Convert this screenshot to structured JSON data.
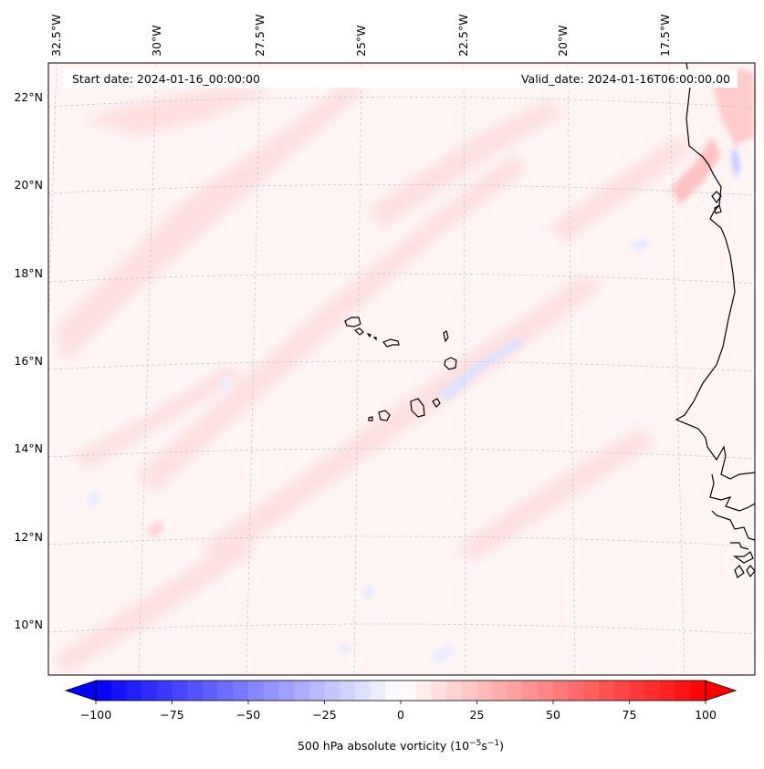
{
  "map": {
    "start_date": "Start date: 2024-01-16_00:00:00",
    "valid_date": "Valid_date: 2024-01-16T06:00:00.00",
    "lon_labels": [
      "32.5°W",
      "30°W",
      "27.5°W",
      "25°W",
      "22.5°W",
      "20°W",
      "17.5°W"
    ],
    "lat_labels": [
      "22°N",
      "20°N",
      "18°N",
      "16°N",
      "14°N",
      "12°N",
      "10°N"
    ],
    "field": "500 hPa absolute vorticity",
    "projection": "lambert-conformal",
    "gridlines": true
  },
  "colorbar": {
    "label": "500 hPa absolute vorticity (10",
    "label_exp1": "−5",
    "label_mid": "s",
    "label_exp2": "−1",
    "label_end": ")",
    "ticks": [
      "−100",
      "−75",
      "−50",
      "−25",
      "0",
      "25",
      "50",
      "75",
      "100"
    ],
    "min": -100,
    "max": 100,
    "colormap": "bwr",
    "low_color": "#0000ff",
    "high_color": "#ff0000"
  }
}
